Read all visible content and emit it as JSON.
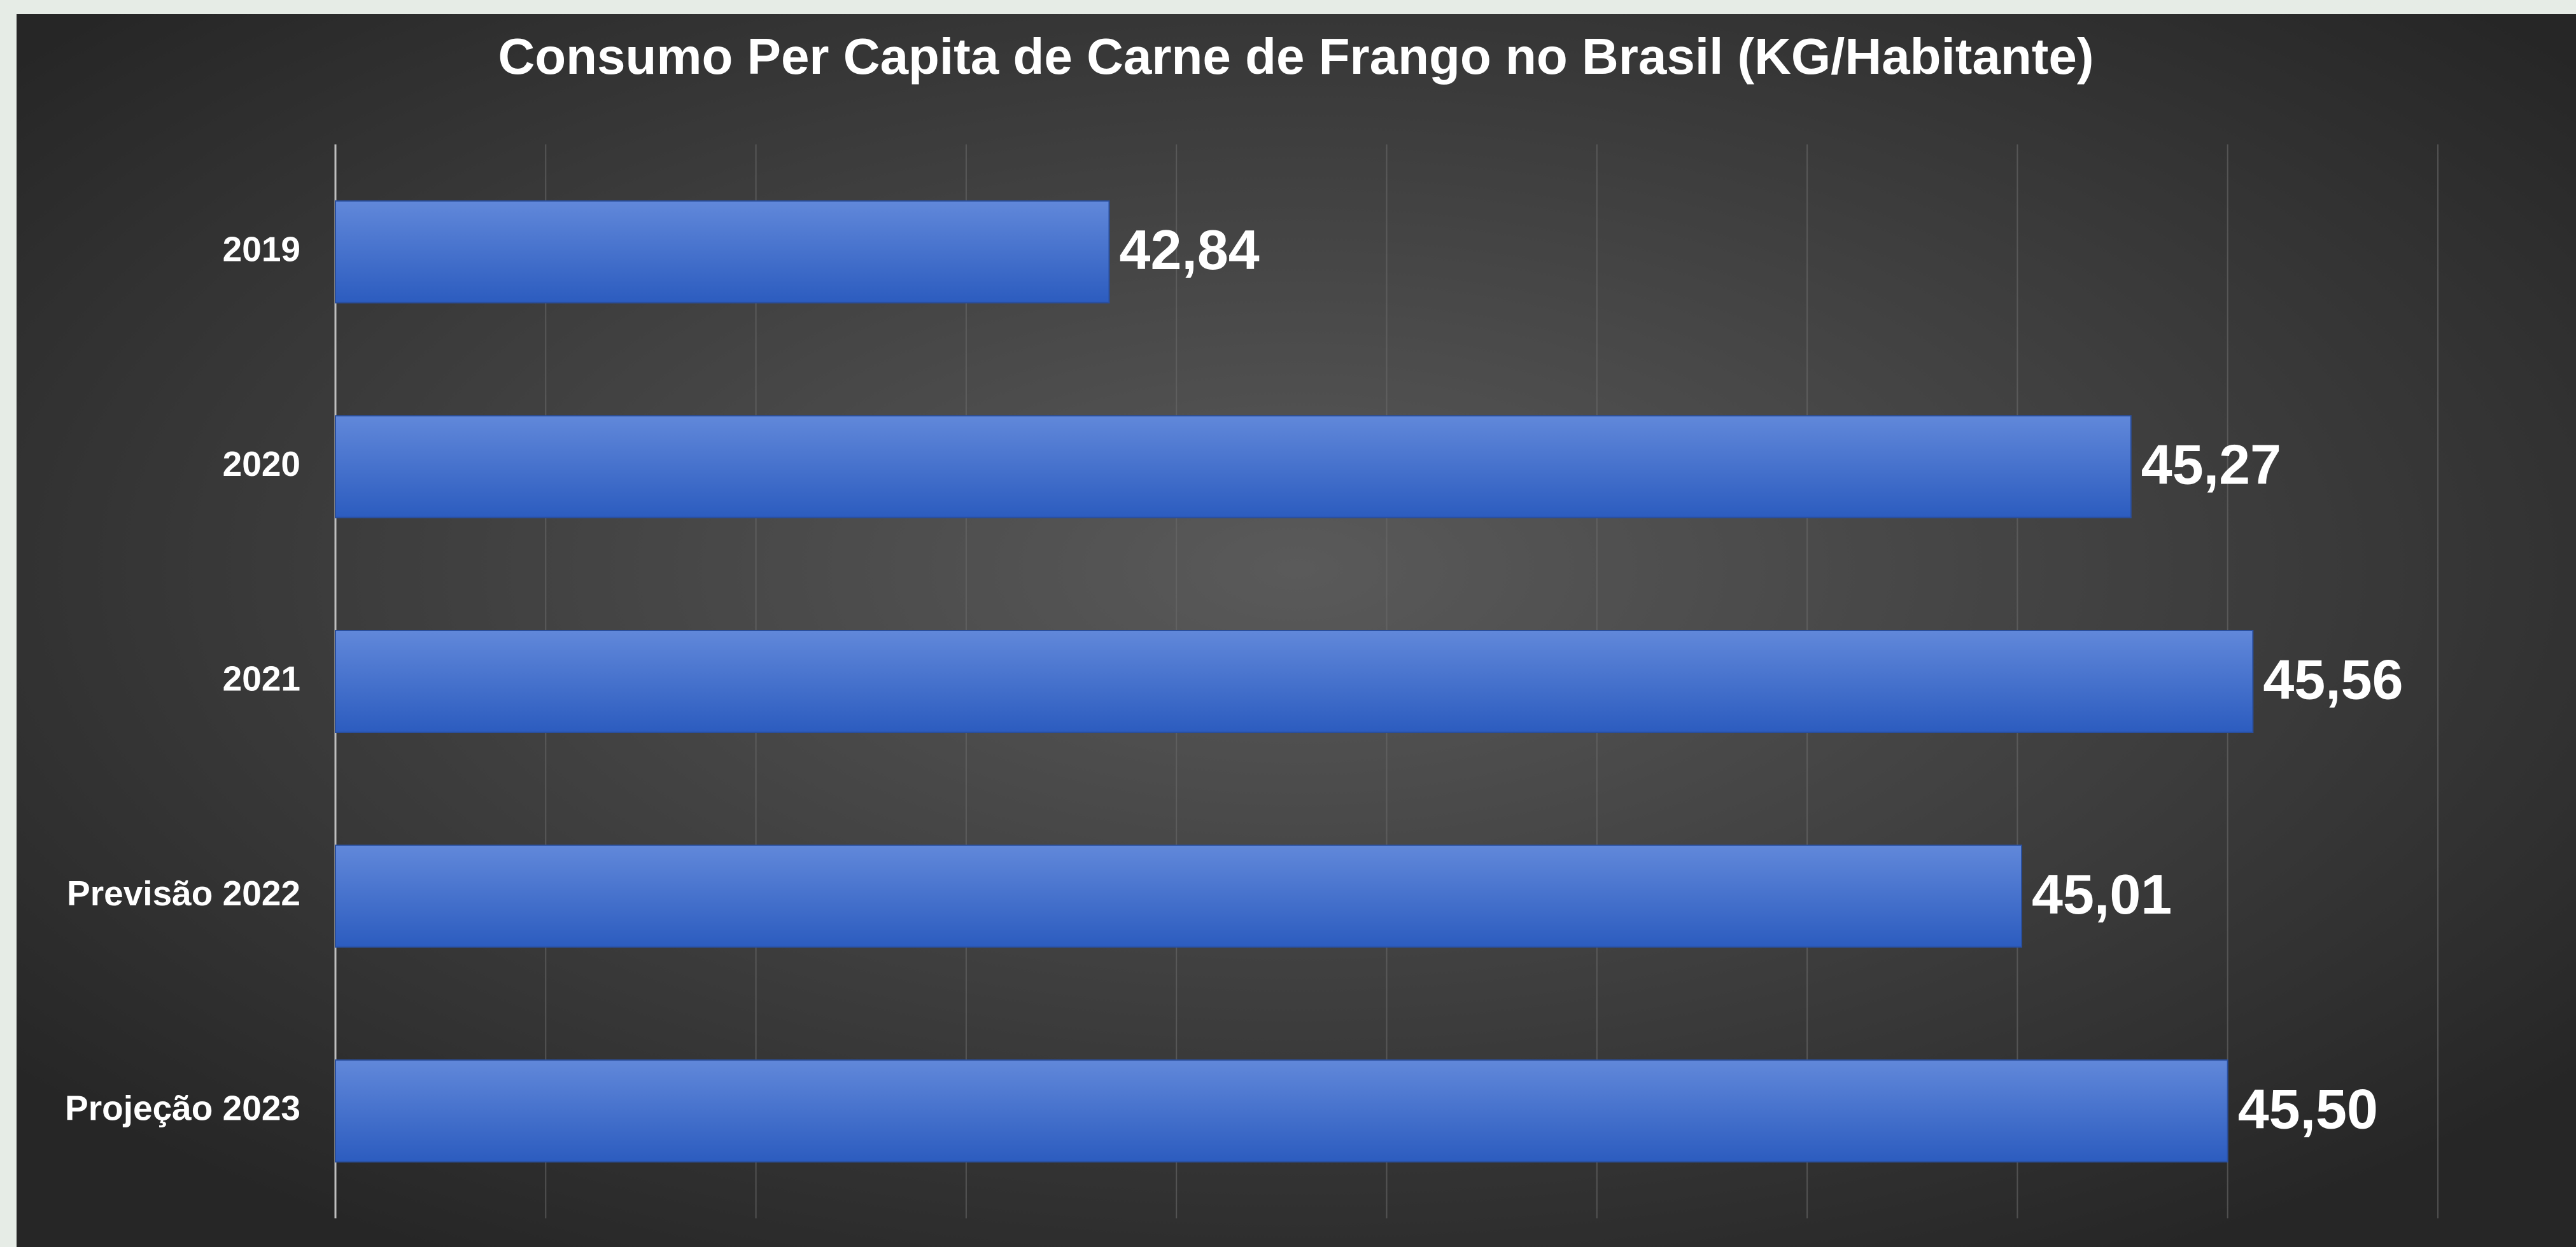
{
  "chart_data": {
    "type": "bar",
    "orientation": "horizontal",
    "title": "Consumo Per Capita de Carne de Frango no Brasil (KG/Habitante)",
    "categories": [
      "2019",
      "2020",
      "2021",
      "Previsão 2022",
      "Projeção 2023"
    ],
    "values": [
      42.84,
      45.27,
      45.56,
      45.01,
      45.5
    ],
    "value_labels": [
      "42,84",
      "45,27",
      "45,56",
      "45,01",
      "45,50"
    ],
    "color": "#4470d0",
    "xlim": [
      41,
      46
    ],
    "xticks": [
      41,
      41.5,
      42,
      42.5,
      43,
      43.5,
      44,
      44.5,
      45,
      45.5,
      46
    ],
    "grid": true
  }
}
